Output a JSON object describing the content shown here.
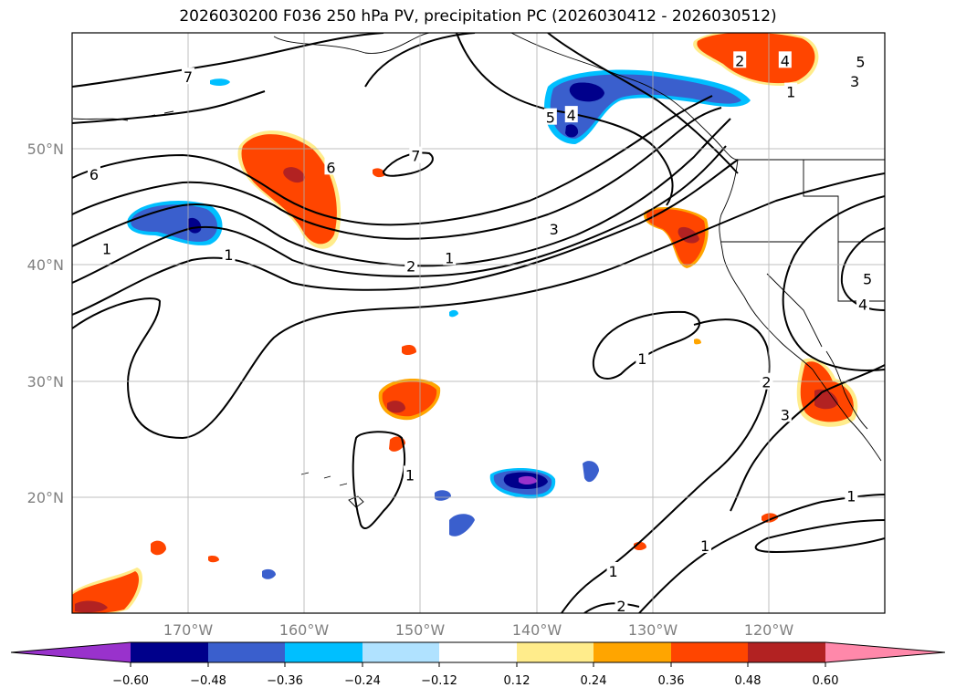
{
  "title": "2026030200 F036 250 hPa PV, precipitation PC (2026030412 - 2026030512)",
  "map": {
    "lat_labels": [
      "50°N",
      "40°N",
      "30°N",
      "20°N"
    ],
    "lon_labels": [
      "170°W",
      "160°W",
      "150°W",
      "140°W",
      "130°W",
      "120°W"
    ],
    "contour_labels": [
      {
        "text": "7",
        "lon": -170,
        "lat": 56.2
      },
      {
        "text": "7",
        "lon": -150.4,
        "lat": 49.4
      },
      {
        "text": "6",
        "lon": -178.1,
        "lat": 47.8
      },
      {
        "text": "6",
        "lon": -157.7,
        "lat": 48.4
      },
      {
        "text": "5",
        "lon": -138.8,
        "lat": 52.7
      },
      {
        "text": "4",
        "lon": -137,
        "lat": 52.9
      },
      {
        "text": "3",
        "lon": -138.5,
        "lat": 43.1
      },
      {
        "text": "2",
        "lon": -150.8,
        "lat": 39.9
      },
      {
        "text": "1",
        "lon": -147.5,
        "lat": 40.6
      },
      {
        "text": "1",
        "lon": -177,
        "lat": 41.4
      },
      {
        "text": "1",
        "lon": -166.5,
        "lat": 40.9
      },
      {
        "text": "2",
        "lon": -122.5,
        "lat": 57.6
      },
      {
        "text": "4",
        "lon": -118.6,
        "lat": 57.6
      },
      {
        "text": "5",
        "lon": -112.1,
        "lat": 57.5
      },
      {
        "text": "3",
        "lon": -112.6,
        "lat": 55.8
      },
      {
        "text": "1",
        "lon": -118.1,
        "lat": 54.9
      },
      {
        "text": "1",
        "lon": -130.9,
        "lat": 31.9
      },
      {
        "text": "2",
        "lon": -120.2,
        "lat": 29.9
      },
      {
        "text": "3",
        "lon": -118.6,
        "lat": 27.1
      },
      {
        "text": "5",
        "lon": -111.5,
        "lat": 38.8
      },
      {
        "text": "4",
        "lon": -111.9,
        "lat": 36.6
      },
      {
        "text": "1",
        "lon": -150.9,
        "lat": 21.9
      },
      {
        "text": "1",
        "lon": -133.4,
        "lat": 13.6
      },
      {
        "text": "1",
        "lon": -125.5,
        "lat": 15.8
      },
      {
        "text": "1",
        "lon": -112.9,
        "lat": 20.1
      },
      {
        "text": "2",
        "lon": -132.7,
        "lat": 10.6
      }
    ]
  },
  "colorbar": {
    "ticks": [
      "−0.60",
      "−0.48",
      "−0.36",
      "−0.24",
      "−0.12",
      "0.12",
      "0.24",
      "0.36",
      "0.48",
      "0.60"
    ],
    "colors": [
      "#9932cc",
      "#00008b",
      "#3a5fcd",
      "#00bfff",
      "#b0e2ff",
      "#ffffff",
      "#ffec8b",
      "#ffa500",
      "#ff4500",
      "#b22222",
      "#ff88aa"
    ]
  }
}
